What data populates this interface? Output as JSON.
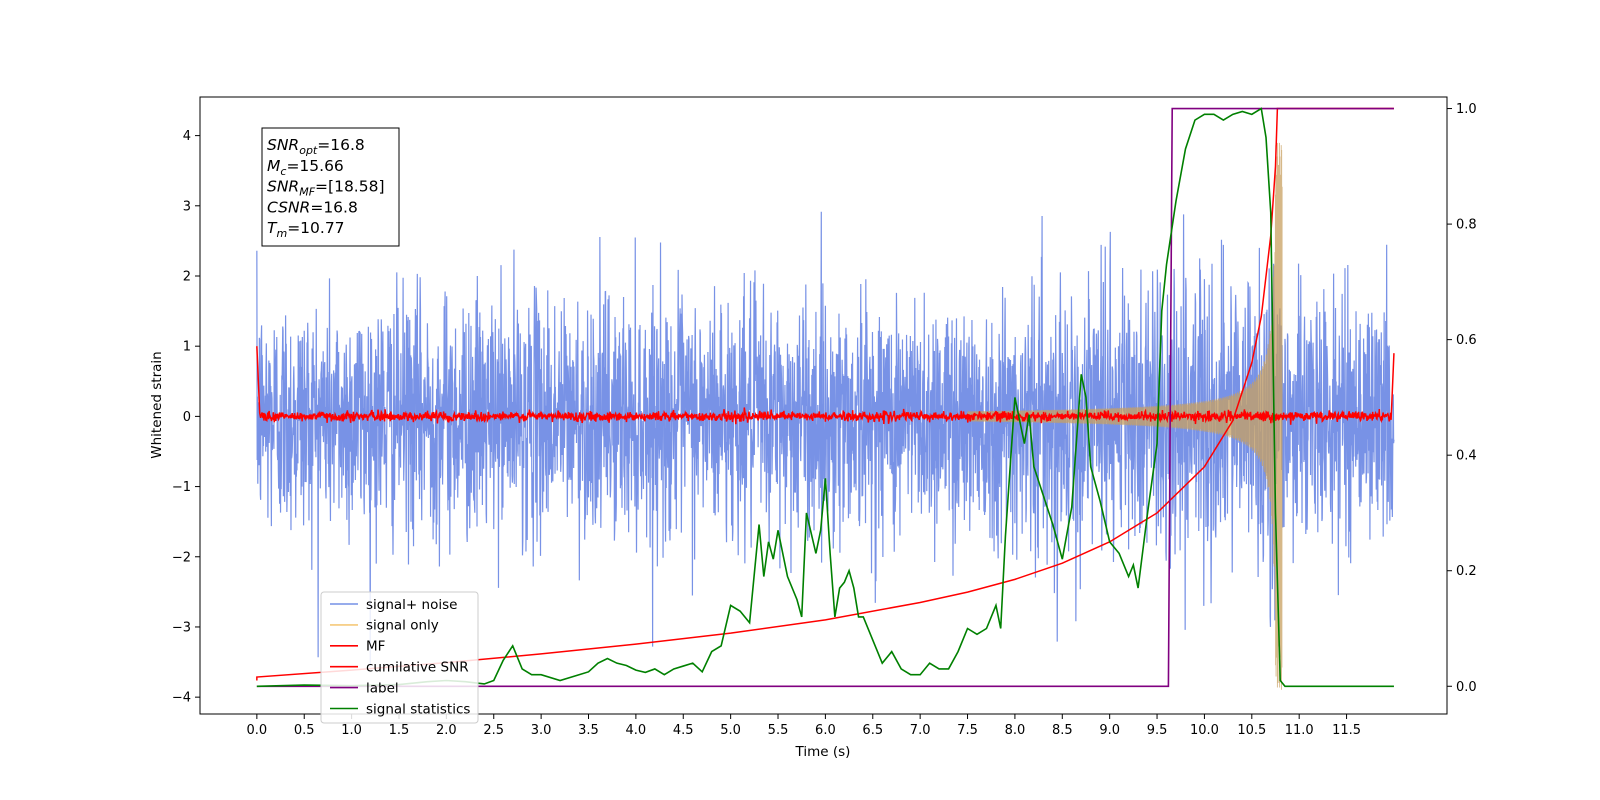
{
  "chart_data": {
    "type": "line",
    "xlabel": "Time (s)",
    "ylabel_left": "Whitened strain",
    "ylabel_right": "",
    "xlim": [
      -0.6,
      12.56
    ],
    "ylim_left": [
      -4.24,
      4.55
    ],
    "ylim_right": [
      -0.048,
      1.02
    ],
    "x_ticks": [
      0.0,
      0.5,
      1.0,
      1.5,
      2.0,
      2.5,
      3.0,
      3.5,
      4.0,
      4.5,
      5.0,
      5.5,
      6.0,
      6.5,
      7.0,
      7.5,
      8.0,
      8.5,
      9.0,
      9.5,
      10.0,
      10.5,
      11.0,
      11.5
    ],
    "x_tick_labels": [
      "0.0",
      "0.5",
      "1.0",
      "1.5",
      "2.0",
      "2.5",
      "3.0",
      "3.5",
      "4.0",
      "4.5",
      "5.0",
      "5.5",
      "6.0",
      "6.5",
      "7.0",
      "7.5",
      "8.0",
      "8.5",
      "9.0",
      "9.5",
      "10.0",
      "10.5",
      "11.0",
      "11.5"
    ],
    "y_ticks_left": [
      -4,
      -3,
      -2,
      -1,
      0,
      1,
      2,
      3,
      4
    ],
    "y_tick_labels_left": [
      "−4",
      "−3",
      "−2",
      "−1",
      "0",
      "1",
      "2",
      "3",
      "4"
    ],
    "y_ticks_right": [
      0.0,
      0.2,
      0.4,
      0.6,
      0.8,
      1.0
    ],
    "y_tick_labels_right": [
      "0.0",
      "0.2",
      "0.4",
      "0.6",
      "0.8",
      "1.0"
    ],
    "grid": false,
    "legend_position": "lower-left",
    "series": [
      {
        "name": "signal+ noise",
        "axis": "left",
        "color": "#7590e6",
        "description_range": [
          -3.8,
          3.3
        ],
        "x_range": [
          0.0,
          12.0
        ],
        "noise_std": 0.85
      },
      {
        "name": "signal only",
        "axis": "left",
        "color": "#f5c97a",
        "chirp_peak_time": 10.77,
        "chirp_peak_amplitude": 3.9
      },
      {
        "name": "MF",
        "axis": "left",
        "color": "#ff0000",
        "x": [
          0.0,
          0.03,
          12.0
        ],
        "y": [
          1.0,
          0.0,
          0.9
        ]
      },
      {
        "name": "cumilative SNR",
        "axis": "right",
        "color": "#ff0000",
        "x": [
          0.0,
          1.0,
          2.0,
          3.0,
          4.0,
          5.0,
          6.0,
          7.0,
          7.5,
          8.0,
          8.5,
          9.0,
          9.5,
          10.0,
          10.3,
          10.5,
          10.6,
          10.7,
          10.75,
          10.77,
          12.0
        ],
        "y": [
          0.016,
          0.028,
          0.041,
          0.056,
          0.073,
          0.092,
          0.115,
          0.145,
          0.163,
          0.185,
          0.213,
          0.25,
          0.3,
          0.38,
          0.46,
          0.56,
          0.64,
          0.78,
          0.9,
          1.0,
          1.0
        ]
      },
      {
        "name": "label",
        "axis": "right",
        "color": "#800080",
        "x": [
          0.0,
          9.62,
          9.66,
          10.77,
          10.78,
          12.0
        ],
        "y": [
          0.0,
          0.0,
          1.0,
          1.0,
          1.0,
          1.0
        ]
      },
      {
        "name": "signal statistics",
        "axis": "right",
        "color": "#008000",
        "x": [
          0.0,
          0.5,
          1.0,
          1.5,
          1.8,
          2.0,
          2.2,
          2.4,
          2.5,
          2.6,
          2.7,
          2.8,
          2.9,
          3.0,
          3.2,
          3.4,
          3.5,
          3.6,
          3.7,
          3.8,
          3.9,
          4.0,
          4.1,
          4.2,
          4.3,
          4.4,
          4.5,
          4.6,
          4.7,
          4.8,
          4.9,
          5.0,
          5.1,
          5.2,
          5.3,
          5.35,
          5.4,
          5.45,
          5.5,
          5.6,
          5.7,
          5.75,
          5.8,
          5.9,
          5.95,
          6.0,
          6.05,
          6.1,
          6.15,
          6.2,
          6.25,
          6.3,
          6.35,
          6.4,
          6.5,
          6.6,
          6.7,
          6.8,
          6.9,
          7.0,
          7.1,
          7.2,
          7.3,
          7.4,
          7.5,
          7.6,
          7.7,
          7.8,
          7.85,
          7.9,
          8.0,
          8.1,
          8.15,
          8.2,
          8.3,
          8.4,
          8.5,
          8.6,
          8.7,
          8.75,
          8.8,
          8.9,
          9.0,
          9.1,
          9.2,
          9.25,
          9.3,
          9.4,
          9.5,
          9.55,
          9.6,
          9.7,
          9.8,
          9.9,
          10.0,
          10.1,
          10.2,
          10.3,
          10.4,
          10.5,
          10.6,
          10.65,
          10.7,
          10.75,
          10.8,
          10.85,
          10.9,
          11.0,
          12.0
        ],
        "y": [
          0.0,
          0.002,
          0.001,
          0.003,
          0.008,
          0.01,
          0.008,
          0.004,
          0.01,
          0.045,
          0.07,
          0.03,
          0.02,
          0.02,
          0.01,
          0.02,
          0.025,
          0.04,
          0.048,
          0.04,
          0.036,
          0.028,
          0.024,
          0.03,
          0.02,
          0.03,
          0.035,
          0.04,
          0.025,
          0.06,
          0.07,
          0.14,
          0.13,
          0.11,
          0.28,
          0.19,
          0.25,
          0.22,
          0.27,
          0.19,
          0.15,
          0.12,
          0.3,
          0.23,
          0.27,
          0.36,
          0.23,
          0.12,
          0.17,
          0.18,
          0.2,
          0.17,
          0.12,
          0.12,
          0.08,
          0.04,
          0.06,
          0.03,
          0.02,
          0.02,
          0.04,
          0.03,
          0.03,
          0.06,
          0.1,
          0.09,
          0.1,
          0.14,
          0.1,
          0.26,
          0.5,
          0.42,
          0.47,
          0.38,
          0.33,
          0.28,
          0.22,
          0.31,
          0.54,
          0.5,
          0.38,
          0.32,
          0.25,
          0.23,
          0.19,
          0.21,
          0.17,
          0.3,
          0.42,
          0.65,
          0.73,
          0.84,
          0.93,
          0.98,
          0.99,
          0.99,
          0.98,
          0.99,
          0.995,
          0.99,
          1.0,
          0.95,
          0.82,
          0.3,
          0.01,
          0.0,
          0.0,
          0.0,
          0.0
        ]
      }
    ],
    "info_box": {
      "lines": [
        {
          "label": "SNR",
          "sub": "opt",
          "value": "=16.8"
        },
        {
          "label": "M",
          "sub": "c",
          "value": "=15.66"
        },
        {
          "label": "SNR",
          "sub": "MF",
          "value": "=[18.58]"
        },
        {
          "label": "CSNR",
          "sub": "",
          "value": "=16.8"
        },
        {
          "label": "T",
          "sub": "m",
          "value": "=10.77"
        }
      ]
    }
  }
}
